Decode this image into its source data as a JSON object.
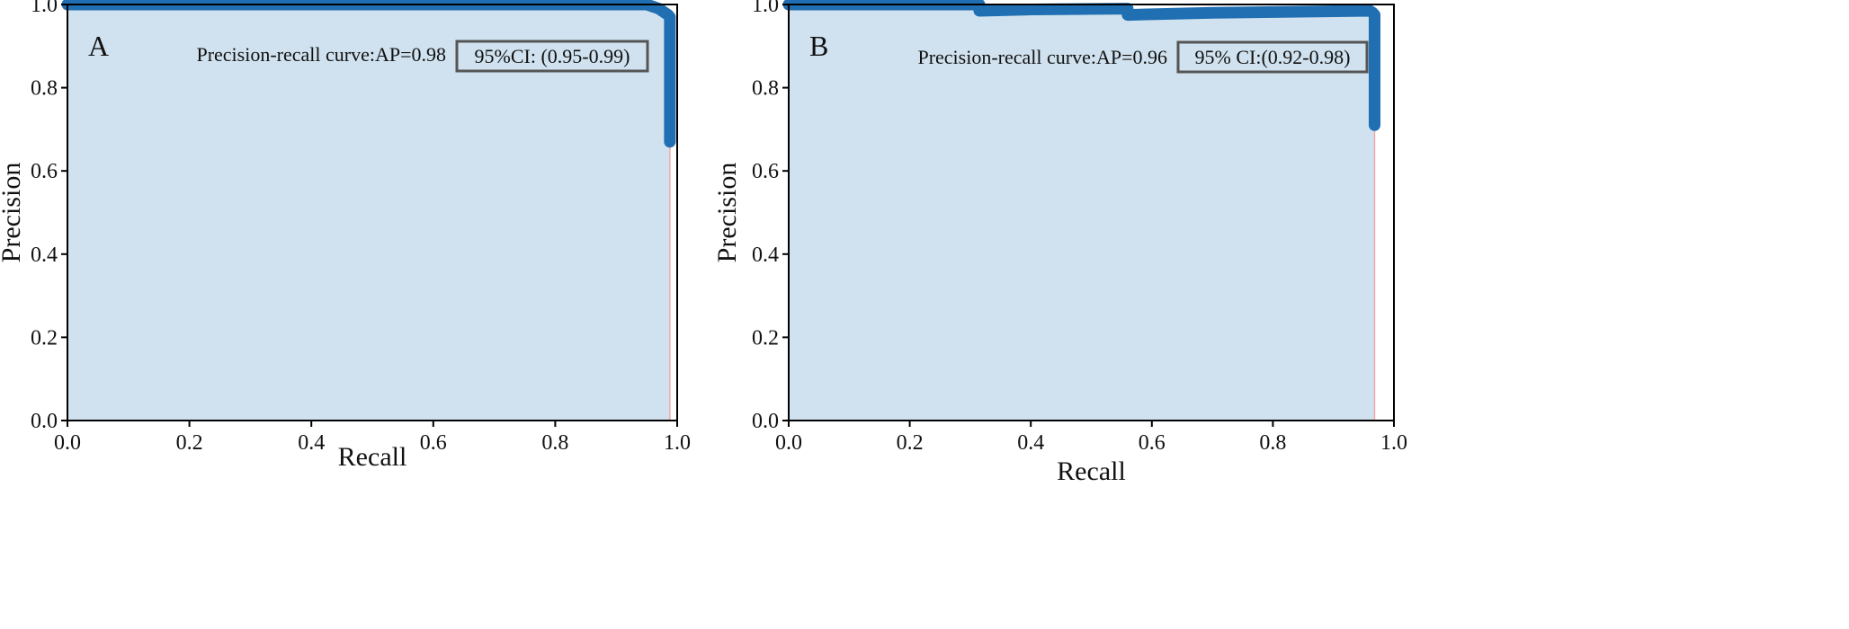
{
  "colors": {
    "line": "#1f6fb2",
    "fill": "#d0e2ef",
    "baseline": "#f4a6a6",
    "axis": "#000000",
    "box_border": "#555555"
  },
  "chart_data": [
    {
      "panel": "A",
      "type": "area",
      "xlabel": "Recall",
      "ylabel": "Precision",
      "xlim": [
        0.0,
        1.0
      ],
      "ylim": [
        0.0,
        1.0
      ],
      "xticks": [
        "0.0",
        "0.2",
        "0.4",
        "0.6",
        "0.8",
        "1.0"
      ],
      "yticks": [
        "0.0",
        "0.2",
        "0.4",
        "0.6",
        "0.8",
        "1.0"
      ],
      "grid": false,
      "annotation": "Precision-recall curve:AP=0.98",
      "ci_label": "95%CI: (0.95-0.99)",
      "baseline_x": 0.988,
      "x": [
        0.0,
        0.95,
        0.96,
        0.97,
        0.975,
        0.98,
        0.985,
        0.988,
        0.988
      ],
      "y": [
        1.0,
        1.0,
        0.995,
        0.99,
        0.985,
        0.98,
        0.975,
        0.97,
        0.67
      ]
    },
    {
      "panel": "B",
      "type": "area",
      "xlabel": "Recall",
      "ylabel": "Precision",
      "xlim": [
        0.0,
        1.0
      ],
      "ylim": [
        0.0,
        1.0
      ],
      "xticks": [
        "0.0",
        "0.2",
        "0.4",
        "0.6",
        "0.8",
        "1.0"
      ],
      "yticks": [
        "0.0",
        "0.2",
        "0.4",
        "0.6",
        "0.8",
        "1.0"
      ],
      "grid": false,
      "annotation": "Precision-recall curve:AP=0.96",
      "ci_label": "95% CI:(0.92-0.98)",
      "baseline_x": 0.968,
      "x": [
        0.0,
        0.315,
        0.315,
        0.4,
        0.56,
        0.56,
        0.7,
        0.96,
        0.965,
        0.968,
        0.968
      ],
      "y": [
        1.0,
        1.0,
        0.985,
        0.988,
        0.99,
        0.975,
        0.98,
        0.985,
        0.98,
        0.975,
        0.71
      ]
    }
  ]
}
